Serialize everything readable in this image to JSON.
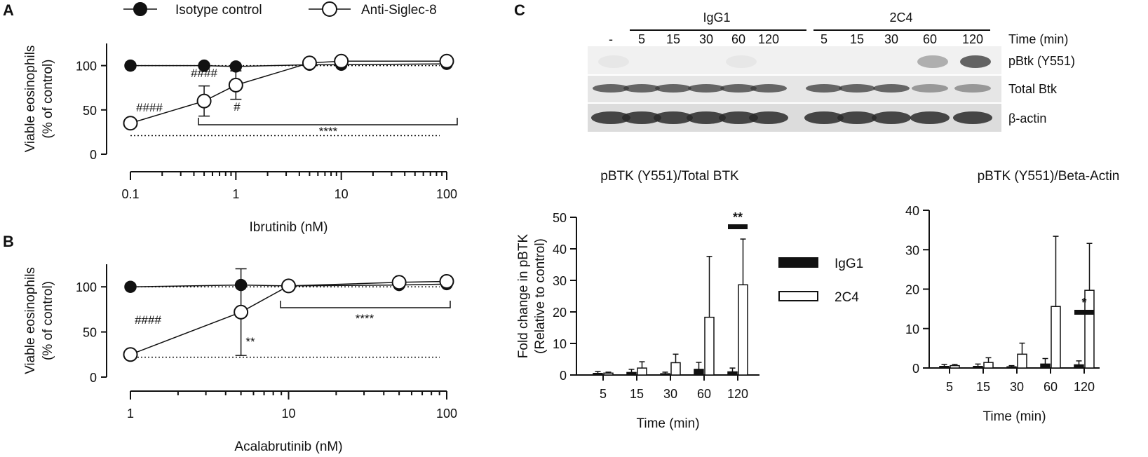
{
  "panels": {
    "a": "A",
    "b": "B",
    "c": "C"
  },
  "legend_top": [
    {
      "label": "Isotype control",
      "marker": "filled-circle"
    },
    {
      "label": "Anti-Siglec-8",
      "marker": "open-circle"
    }
  ],
  "legend_c": [
    {
      "label": "IgG1",
      "fill": "filled"
    },
    {
      "label": "2C4",
      "fill": "open"
    }
  ],
  "blot": {
    "group_labels": [
      "IgG1",
      "2C4"
    ],
    "lane_labels": [
      "-",
      "5",
      "15",
      "30",
      "60",
      "120",
      "5",
      "15",
      "30",
      "60",
      "120"
    ],
    "time_label": "Time (min)",
    "row_labels": [
      "pBtk (Y551)",
      "Total Btk",
      "β-actin"
    ]
  },
  "chart_data": [
    {
      "id": "A",
      "type": "line",
      "xscale": "log",
      "xlabel": "Ibrutinib (nM)",
      "ylabel": "Viable eosinophils\n(% of control)",
      "xticks": [
        "0.1",
        "1",
        "10",
        "100"
      ],
      "yticks": [
        "0",
        "50",
        "100"
      ],
      "xlim": [
        0.1,
        120
      ],
      "ylim": [
        0,
        125
      ],
      "series": [
        {
          "name": "Isotype control",
          "x": [
            0.1,
            0.5,
            1,
            5,
            10,
            100
          ],
          "y": [
            100,
            100,
            99,
            101,
            101,
            102
          ]
        },
        {
          "name": "Anti-Siglec-8",
          "x": [
            0.1,
            0.5,
            1,
            5,
            10,
            100
          ],
          "y": [
            35,
            60,
            78,
            103,
            105,
            105
          ],
          "err": [
            0,
            17,
            16,
            0,
            0,
            0
          ]
        }
      ],
      "dotted_reference": 21,
      "annotations": [
        "####",
        "####",
        "#",
        "****"
      ]
    },
    {
      "id": "B",
      "type": "line",
      "xscale": "log",
      "xlabel": "Acalabrutinib (nM)",
      "ylabel": "Viable eosinophils\n(% of control)",
      "xticks": [
        "1",
        "10",
        "100"
      ],
      "yticks": [
        "0",
        "50",
        "100"
      ],
      "xlim": [
        1,
        100
      ],
      "ylim": [
        0,
        125
      ],
      "series": [
        {
          "name": "Isotype control",
          "x": [
            1,
            5,
            10,
            50,
            100
          ],
          "y": [
            100,
            102,
            101,
            102,
            103
          ]
        },
        {
          "name": "Anti-Siglec-8",
          "x": [
            1,
            5,
            10,
            50,
            100
          ],
          "y": [
            25,
            72,
            101,
            105,
            106
          ],
          "err": [
            0,
            48,
            0,
            0,
            0
          ]
        }
      ],
      "dotted_reference": 22,
      "annotations": [
        "####",
        "**",
        "****"
      ]
    },
    {
      "id": "C1",
      "type": "bar",
      "title": "pBTK (Y551)/Total BTK",
      "xlabel": "Time (min)",
      "ylabel": "Fold change in pBTK\n(Relative to control)",
      "categories": [
        "5",
        "15",
        "30",
        "60",
        "120"
      ],
      "yticks": [
        "0",
        "10",
        "20",
        "30",
        "40",
        "50"
      ],
      "ylim": [
        0,
        50
      ],
      "series": [
        {
          "name": "IgG1",
          "values": [
            0.5,
            0.8,
            0.4,
            1.8,
            1.0
          ],
          "err": [
            0.6,
            1.0,
            0.5,
            2.2,
            1.2
          ]
        },
        {
          "name": "2C4",
          "values": [
            0.6,
            2.2,
            3.9,
            18.3,
            28.6
          ],
          "err": [
            0.3,
            2.0,
            2.7,
            19.3,
            14.5
          ]
        }
      ],
      "annotations": [
        "**"
      ]
    },
    {
      "id": "C2",
      "type": "bar",
      "title": "pBTK (Y551)/Beta-Actin",
      "xlabel": "Time (min)",
      "categories": [
        "5",
        "15",
        "30",
        "60",
        "120"
      ],
      "yticks": [
        "0",
        "10",
        "20",
        "30",
        "40"
      ],
      "ylim": [
        0,
        40
      ],
      "series": [
        {
          "name": "IgG1",
          "values": [
            0.4,
            0.4,
            0.3,
            1.0,
            0.8
          ],
          "err": [
            0.5,
            0.6,
            0.3,
            1.4,
            1.0
          ]
        },
        {
          "name": "2C4",
          "values": [
            0.6,
            1.4,
            3.5,
            15.6,
            19.7
          ],
          "err": [
            0.3,
            1.2,
            2.8,
            17.8,
            11.9
          ]
        }
      ],
      "annotations": [
        "*"
      ]
    }
  ]
}
